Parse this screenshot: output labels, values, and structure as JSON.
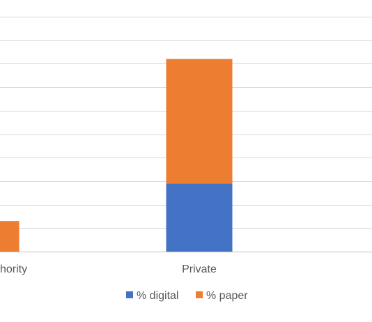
{
  "chart_data": {
    "type": "bar",
    "stacked": true,
    "categories": [
      "Local authority",
      "Private"
    ],
    "visible_category_labels": [
      "hority",
      "Private"
    ],
    "series": [
      {
        "name": "% digital",
        "color": "#4472C4",
        "values": [
          0,
          29
        ]
      },
      {
        "name": "% paper",
        "color": "#ED7D31",
        "values": [
          13,
          53
        ]
      }
    ],
    "ylim": [
      0,
      100
    ],
    "gridline_step": 10,
    "grid": true,
    "legend": "bottom-center"
  }
}
